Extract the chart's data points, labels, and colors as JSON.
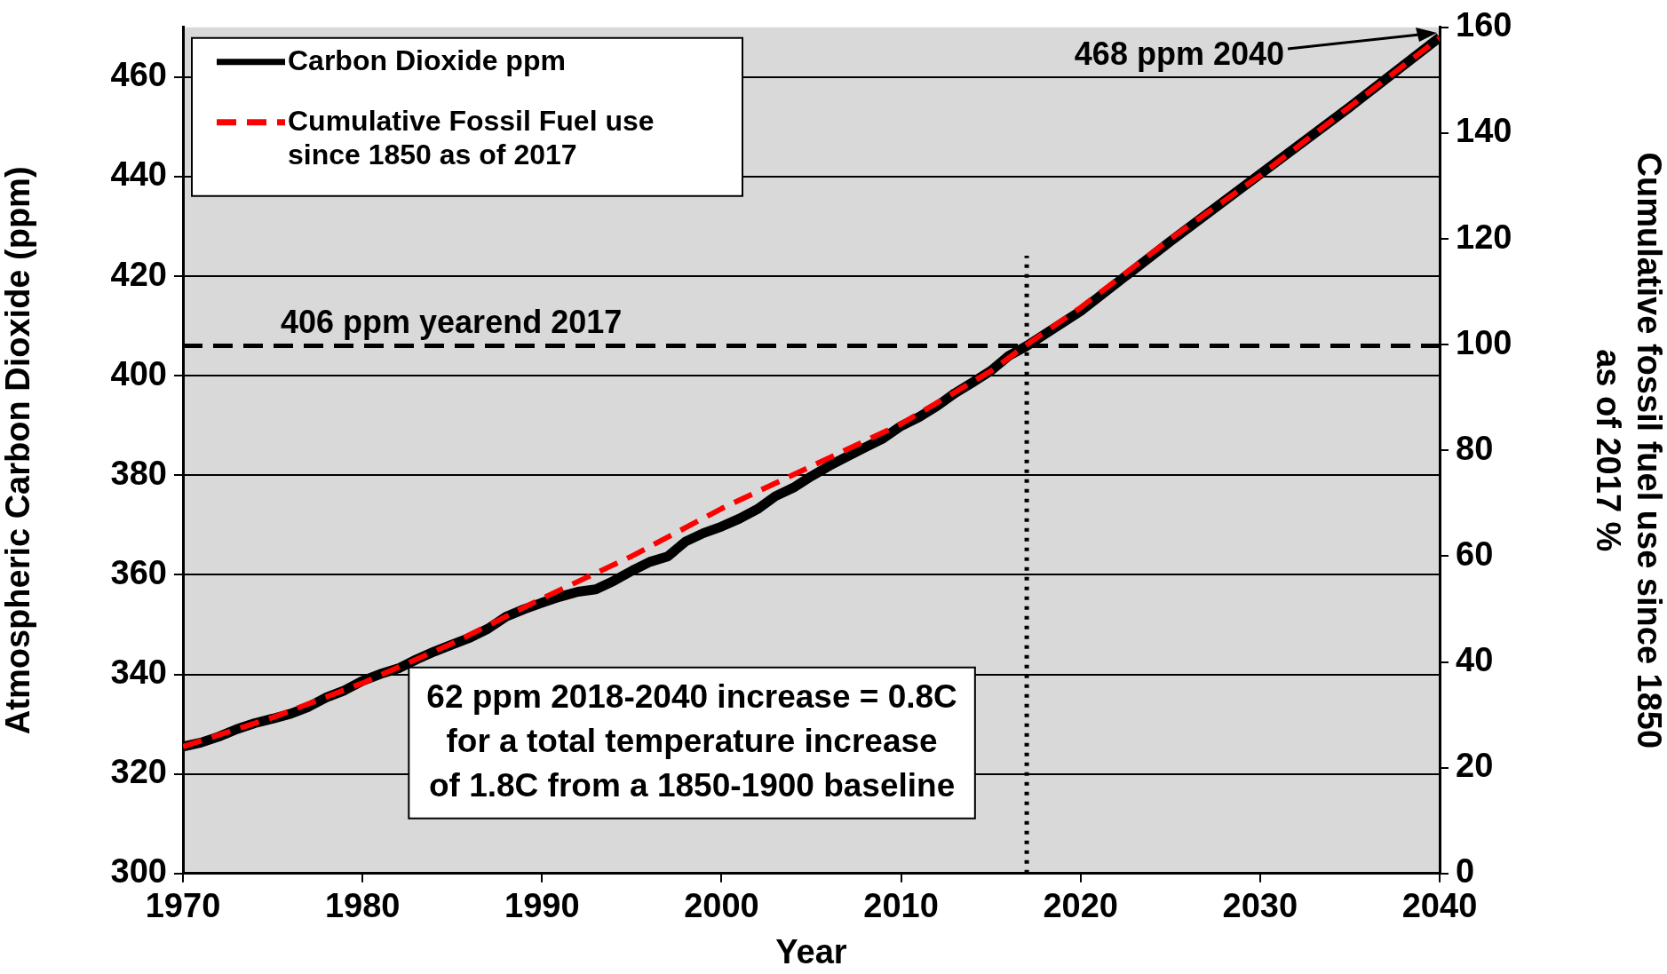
{
  "chart_data": {
    "type": "line",
    "xlabel": "Year",
    "ylabel": "Atmospheric Carbon Dioxide (ppm)",
    "y2label": "Cumulative fossil fuel use since 1850\nas of 2017 %",
    "xlim": [
      1970,
      2040
    ],
    "xticks": [
      1970,
      1980,
      1990,
      2000,
      2010,
      2020,
      2030,
      2040
    ],
    "ylim": [
      300,
      470
    ],
    "yticks": [
      300,
      320,
      340,
      360,
      380,
      400,
      420,
      440,
      460
    ],
    "y2lim": [
      0,
      160
    ],
    "y2ticks": [
      0,
      20,
      40,
      60,
      80,
      100,
      120,
      140,
      160
    ],
    "grid": "y",
    "legend": "top left",
    "marker": "none",
    "series": [
      {
        "name": "Carbon Dioxide ppm",
        "color": "#000000",
        "line_style": "solid",
        "x": [
          1970,
          1971,
          1972,
          1973,
          1974,
          1975,
          1976,
          1977,
          1978,
          1979,
          1980,
          1981,
          1982,
          1983,
          1984,
          1985,
          1986,
          1987,
          1988,
          1989,
          1990,
          1991,
          1992,
          1993,
          1994,
          1995,
          1996,
          1997,
          1998,
          1999,
          2000,
          2001,
          2002,
          2003,
          2004,
          2005,
          2006,
          2007,
          2008,
          2009,
          2010,
          2011,
          2012,
          2013,
          2014,
          2015,
          2016,
          2017,
          2020,
          2025,
          2030,
          2035,
          2040
        ],
        "values": [
          325.5,
          326.3,
          327.5,
          329,
          330.2,
          331.1,
          332.1,
          333.5,
          335.4,
          336.8,
          338.7,
          340.1,
          341.2,
          343,
          344.6,
          346,
          347.4,
          349.2,
          351.6,
          353.1,
          354.4,
          355.6,
          356.6,
          357.1,
          358.8,
          360.8,
          362.6,
          363.7,
          366.7,
          368.4,
          369.7,
          371.3,
          373.2,
          375.8,
          377.5,
          379.8,
          381.9,
          383.8,
          385.6,
          387.4,
          389.9,
          391.7,
          393.9,
          396.5,
          398.7,
          401,
          404,
          406,
          413,
          427,
          440.5,
          454,
          468
        ]
      },
      {
        "name": "Cumulative Fossil Fuel use since 1850 as of 2017",
        "color": "#ff0000",
        "line_style": "dashed",
        "axis": "y2",
        "x": [
          1970,
          1975,
          1980,
          1985,
          1990,
          1995,
          2000,
          2005,
          2010,
          2015,
          2017,
          2020,
          2025,
          2030,
          2035,
          2040
        ],
        "values": [
          24,
          29.5,
          36,
          43.5,
          52,
          60,
          69,
          77,
          85,
          95,
          100,
          107,
          120,
          132,
          145,
          158
        ]
      }
    ],
    "ref_lines": [
      {
        "axis": "y",
        "value": 406,
        "label": "406 ppm yearend 2017",
        "color": "#000000",
        "line_style": "dashed"
      },
      {
        "axis": "x",
        "value": 2017,
        "color": "#000000",
        "line_style": "dotted"
      }
    ],
    "annotations": [
      "468 ppm 2040",
      "62 ppm 2018-2040 increase = 0.8C\nfor a total temperature increase\nof 1.8C from a 1850-1900 baseline"
    ]
  }
}
